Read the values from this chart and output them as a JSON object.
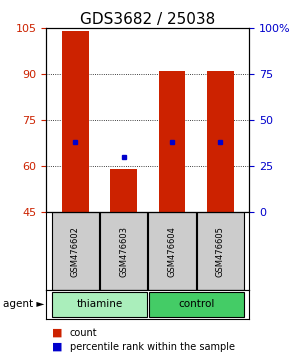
{
  "title": "GDS3682 / 25038",
  "samples": [
    "GSM476602",
    "GSM476603",
    "GSM476604",
    "GSM476605"
  ],
  "bar_values": [
    104,
    59,
    91,
    91
  ],
  "bar_bottom": 45,
  "blue_dot_values": [
    68,
    63,
    68,
    68
  ],
  "bar_color": "#cc2200",
  "dot_color": "#0000cc",
  "ylim_left": [
    45,
    105
  ],
  "ylim_right": [
    0,
    100
  ],
  "left_ticks": [
    45,
    60,
    75,
    90,
    105
  ],
  "right_ticks": [
    0,
    25,
    50,
    75,
    100
  ],
  "right_tick_labels": [
    "0",
    "25",
    "50",
    "75",
    "100%"
  ],
  "grid_values": [
    60,
    75,
    90
  ],
  "groups": [
    {
      "label": "thiamine",
      "samples": [
        0,
        1
      ],
      "color": "#aaeebb"
    },
    {
      "label": "control",
      "samples": [
        2,
        3
      ],
      "color": "#44cc66"
    }
  ],
  "group_label": "agent",
  "legend_count_label": "count",
  "legend_pct_label": "percentile rank within the sample",
  "sample_box_color": "#cccccc",
  "title_fontsize": 11,
  "tick_fontsize": 8,
  "bar_width": 0.55
}
